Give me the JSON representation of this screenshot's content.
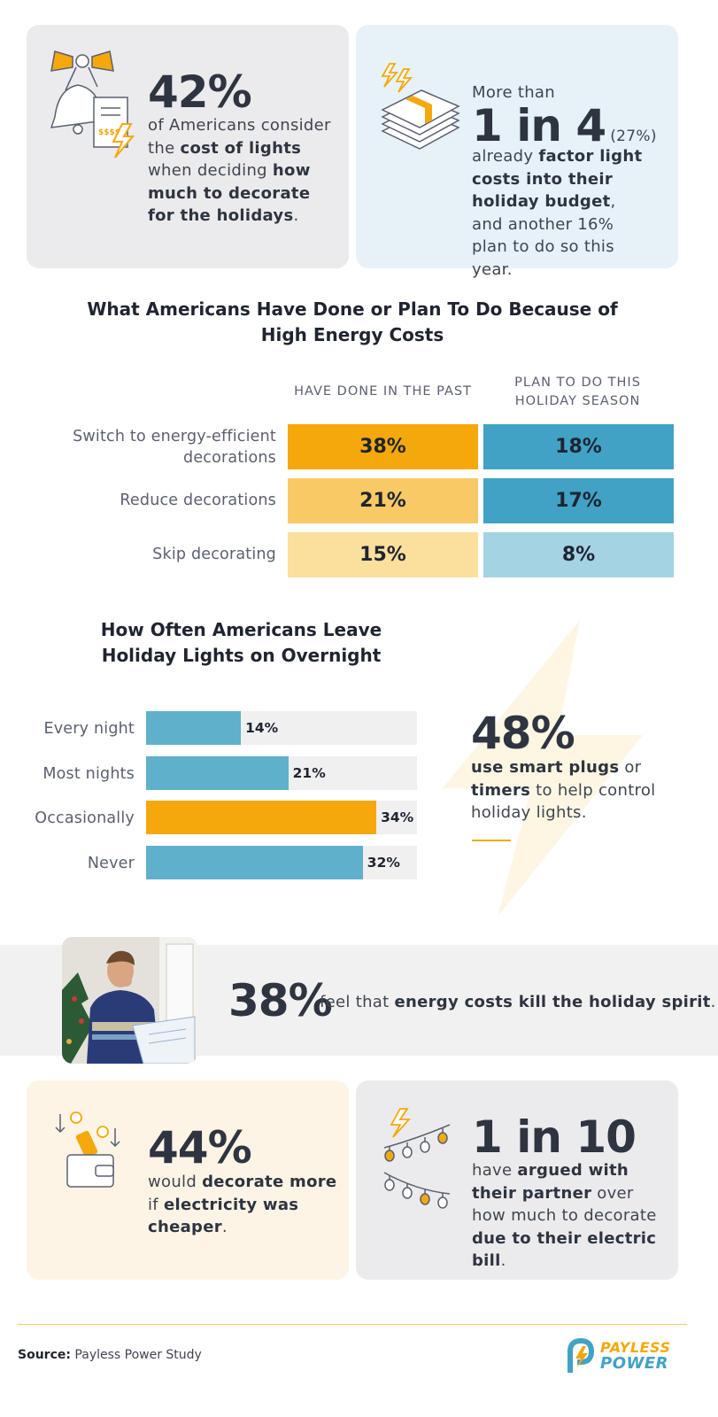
{
  "stat_card_1": {
    "number": "42%",
    "pre": "of Americans consider the ",
    "b1": "cost of lights",
    "mid": " when deciding ",
    "b2": "how much to decorate for the holidays",
    "post": "."
  },
  "stat_card_2": {
    "more_than": "More than",
    "number": "1 in 4",
    "paren": "(27%)",
    "pre": "already ",
    "b1": "factor light costs into their holiday budget",
    "post": ", and another 16% plan to do so this year."
  },
  "actions_table": {
    "title": "What Americans Have Done or Plan To Do Because of High Energy Costs",
    "columns": [
      "HAVE DONE IN THE PAST",
      "PLAN TO DO THIS HOLIDAY SEASON"
    ],
    "rows": [
      {
        "label": "Switch to energy-efficient decorations",
        "past": "38%",
        "plan": "18%"
      },
      {
        "label": "Reduce decorations",
        "past": "21%",
        "plan": "17%"
      },
      {
        "label": "Skip decorating",
        "past": "15%",
        "plan": "8%"
      }
    ],
    "colors": {
      "past": [
        "#f5a80c",
        "#f8ca65",
        "#fbdf9c"
      ],
      "plan": [
        "#41a2c6",
        "#41a2c6",
        "#a4d3e4"
      ]
    }
  },
  "chart_data": {
    "type": "bar",
    "orientation": "horizontal",
    "title": "How Often Americans Leave Holiday Lights on Overnight",
    "categories": [
      "Every night",
      "Most nights",
      "Occasionally",
      "Never"
    ],
    "values": [
      14,
      21,
      34,
      32
    ],
    "labels": [
      "14%",
      "21%",
      "34%",
      "32%"
    ],
    "xlim": [
      0,
      40
    ],
    "colors": [
      "#5fb0cb",
      "#5fb0cb",
      "#f5a80c",
      "#5fb0cb"
    ]
  },
  "smart_plugs": {
    "number": "48%",
    "b1": "use smart plugs",
    "mid": " or ",
    "b2": "timers",
    "post": " to help control holiday lights."
  },
  "spirit_banner": {
    "number": "38%",
    "pre": "feel that ",
    "b1": "energy costs kill the holiday spirit",
    "post": "."
  },
  "stat_card_3": {
    "number": "44%",
    "pre": "would ",
    "b1": "decorate more",
    "mid": " if ",
    "b2": "electricity was cheaper",
    "post": "."
  },
  "stat_card_4": {
    "number": "1 in 10",
    "pre": "have ",
    "b1": "argued with their partner",
    "mid": " over how much to decorate ",
    "b2": "due to their electric bill",
    "post": "."
  },
  "footer": {
    "source_label": "Source:",
    "source_text": "Payless Power Study",
    "logo_top": "PAYLESS",
    "logo_bottom": "POWER"
  },
  "theme": {
    "orange": "#f5a80c",
    "blue": "#41a2c6",
    "gray_card": "#ebebed",
    "blue_card": "#e6f2f7",
    "cream_card": "#fdf4e6"
  }
}
